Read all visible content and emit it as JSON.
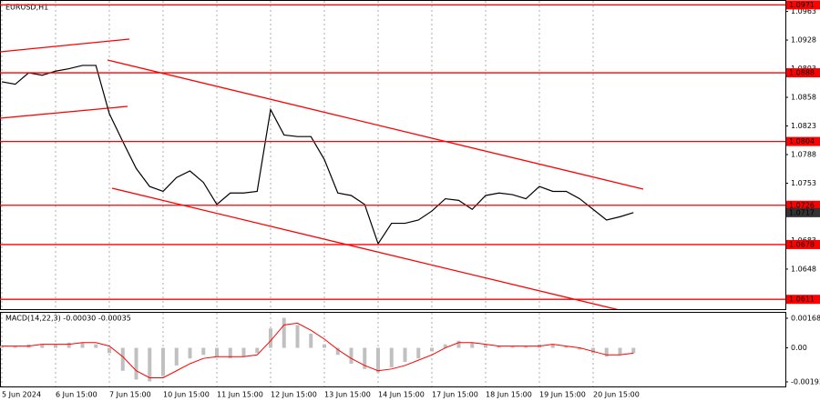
{
  "chart_data": [
    {
      "type": "line",
      "title": "EURUSD,H1",
      "categories": [
        "5 Jun 2024",
        null,
        null,
        null,
        "6 Jun 15:00",
        null,
        null,
        null,
        "7 Jun 15:00",
        null,
        null,
        null,
        "10 Jun 15:00",
        null,
        null,
        null,
        "11 Jun 15:00",
        null,
        null,
        null,
        "12 Jun 15:00",
        null,
        null,
        null,
        "13 Jun 15:00",
        null,
        null,
        null,
        "14 Jun 15:00",
        null,
        null,
        null,
        "17 Jun 15:00",
        null,
        null,
        null,
        "18 Jun 15:00",
        null,
        null,
        null,
        "19 Jun 15:00",
        null,
        null,
        null,
        "20 Jun 15:00",
        null,
        null,
        null
      ],
      "values": [
        1.0877,
        1.0874,
        1.0888,
        1.0885,
        1.089,
        1.0893,
        1.0897,
        1.0897,
        1.0838,
        1.0804,
        1.0771,
        1.0749,
        1.0743,
        1.076,
        1.0768,
        1.0754,
        1.0727,
        1.0741,
        1.0741,
        1.0743,
        1.0843,
        1.0812,
        1.081,
        1.081,
        1.0782,
        1.0741,
        1.0738,
        1.0727,
        1.0679,
        1.0704,
        1.0704,
        1.0708,
        1.0719,
        1.0734,
        1.0732,
        1.0721,
        1.0738,
        1.0741,
        1.0739,
        1.0734,
        1.0749,
        1.0743,
        1.0743,
        1.0734,
        1.0721,
        1.0708,
        1.0712,
        1.0717
      ],
      "color": "#000000",
      "levels": [
        1.0971,
        1.0888,
        1.0804,
        1.0726,
        1.0678,
        1.0611
      ],
      "level_color": "#ff0000",
      "ylim": [
        1.0599,
        1.0977
      ],
      "yticks": [
        1.0963,
        1.0928,
        1.0893,
        1.0858,
        1.0823,
        1.0788,
        1.0753,
        1.0683,
        1.0648
      ],
      "grid": true
    },
    {
      "type": "macd",
      "title": "MACD(14,22,3) -0.00030 -0.00035",
      "series": [
        {
          "color": "#c0c0c0",
          "values": [
            0.0001,
            0.0001,
            0.0002,
            0.0002,
            0.0002,
            0.0003,
            0.0003,
            0.0002,
            -0.0003,
            -0.0013,
            -0.0018,
            -0.0019,
            -0.0016,
            -0.001,
            -0.0006,
            -0.0004,
            -0.0005,
            -0.0006,
            -0.0005,
            -0.0003,
            0.0011,
            0.0017,
            0.0013,
            0.0008,
            0.0002,
            -0.0004,
            -0.0009,
            -0.0012,
            -0.0014,
            -0.0011,
            -0.0008,
            -0.0006,
            -0.0002,
            0.0002,
            0.0004,
            0.0003,
            0.0002,
            0.0001,
            0.0001,
            0.0001,
            0.0002,
            0.0002,
            0.0001,
            -0.0001,
            -0.0003,
            -0.0005,
            -0.0004,
            -0.0003
          ]
        },
        {
          "color": "#ff0000",
          "values": [
            0.0001,
            0.0001,
            0.0001,
            0.0002,
            0.0002,
            0.0002,
            0.0003,
            0.0003,
            0.0001,
            -0.0005,
            -0.0013,
            -0.0017,
            -0.0017,
            -0.0013,
            -0.0009,
            -0.0006,
            -0.0005,
            -0.0005,
            -0.0005,
            -0.0004,
            0.0004,
            0.0013,
            0.0014,
            0.001,
            0.0005,
            -0.0001,
            -0.0006,
            -0.001,
            -0.0013,
            -0.0012,
            -0.001,
            -0.0007,
            -0.0004,
            0.0,
            0.0003,
            0.0003,
            0.0002,
            0.0001,
            0.0001,
            0.0001,
            0.0001,
            0.0002,
            0.0001,
            0.0,
            -0.0002,
            -0.0004,
            -0.0004,
            -0.0003
          ]
        }
      ],
      "ylim": [
        -0.00219,
        0.00204
      ],
      "yticks": [
        0.00168,
        {
          "value": 0,
          "label": "0.00"
        },
        -0.00193
      ]
    }
  ]
}
